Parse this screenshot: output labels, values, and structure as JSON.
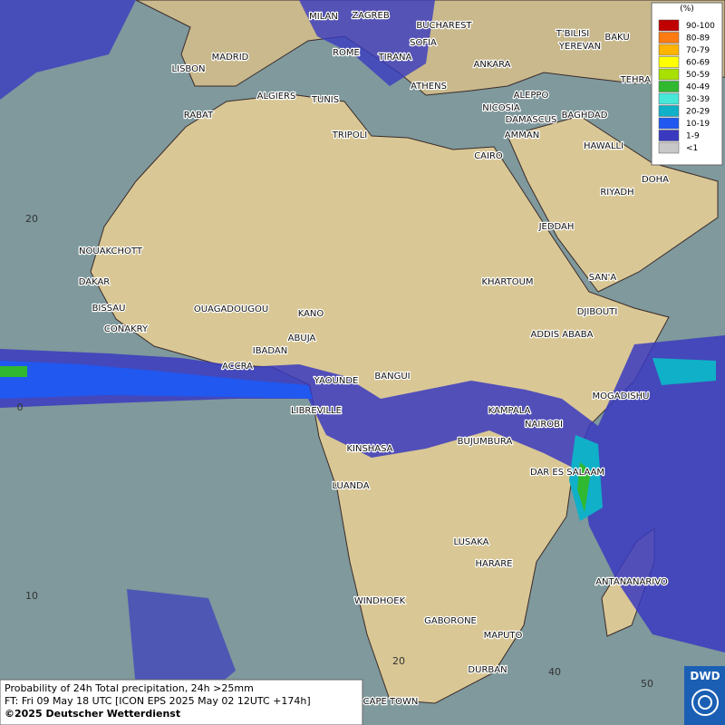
{
  "legend": {
    "unit": "(%)",
    "classes": [
      {
        "label": "90-100",
        "color": "#c00000"
      },
      {
        "label": "80-89",
        "color": "#ff7a10"
      },
      {
        "label": "70-79",
        "color": "#ffb400"
      },
      {
        "label": "60-69",
        "color": "#ffff00"
      },
      {
        "label": "50-59",
        "color": "#a8e000"
      },
      {
        "label": "40-49",
        "color": "#30b830"
      },
      {
        "label": "30-39",
        "color": "#48e8d8"
      },
      {
        "label": "20-29",
        "color": "#10b0c8"
      },
      {
        "label": "10-19",
        "color": "#2058f0"
      },
      {
        "label": "1-9",
        "color": "#3a3ac0"
      },
      {
        "label": "<1",
        "color": "#c8c8c8"
      }
    ]
  },
  "cities": [
    "MILAN",
    "ZAGREB",
    "BUCHAREST",
    "SOFIA",
    "ROME",
    "TIRANA",
    "LISBON",
    "MADRID",
    "ANKARA",
    "T'BILISI",
    "BAKU",
    "YEREVAN",
    "TEHRAN",
    "ATHENS",
    "ALGIERS",
    "TUNIS",
    "ALEPPO",
    "NICOSIA",
    "BAGHDAD",
    "RABAT",
    "DAMASCUS",
    "AMMAN",
    "TRIPOLI",
    "HAWALLI",
    "CAIRO",
    "DOHA",
    "RIYADH",
    "JEDDAH",
    "NOUAKCHOTT",
    "SAN'A",
    "DAKAR",
    "KHARTOUM",
    "BISSAU",
    "OUAGADOUGOU",
    "KANO",
    "DJIBOUTI",
    "CONAKRY",
    "ABUJA",
    "ADDIS ABABA",
    "IBADAN",
    "ACCRA",
    "YAOUNDE",
    "BANGUI",
    "MOGADISHU",
    "LIBREVILLE",
    "KAMPALA",
    "NAIROBI",
    "KINSHASA",
    "BUJUMBURA",
    "DAR ES SALAAM",
    "LUANDA",
    "LUSAKA",
    "HARARE",
    "ANTANANARIVO",
    "WINDHOEK",
    "GABORONE",
    "MAPUTO",
    "DURBAN",
    "CAPE TOWN"
  ],
  "grid_labels": [
    "20",
    "0",
    "10",
    "20",
    "40",
    "50"
  ],
  "footer": [
    "Probability of 24h Total precipitation, 24h >25mm",
    "FT: Fri 09 May 18 UTC [ICON EPS 2025 May 02 12UTC +174h]",
    "©2025 Deutscher Wetterdienst"
  ],
  "logo": "DWD"
}
